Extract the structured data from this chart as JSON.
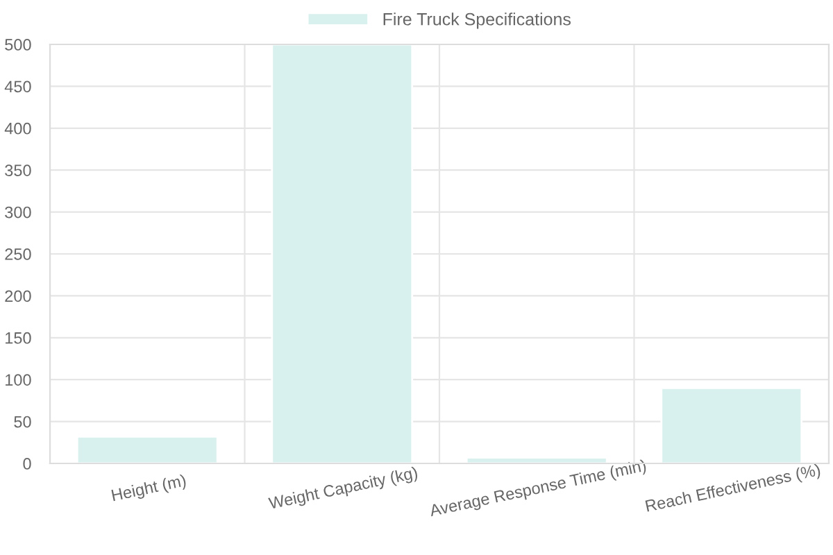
{
  "chart_data": {
    "type": "bar",
    "categories": [
      "Height (m)",
      "Weight Capacity (kg)",
      "Average Response Time (min)",
      "Reach Effectiveness (%)"
    ],
    "series": [
      {
        "name": "Fire Truck Specifications",
        "color": "#d9f1ee",
        "values": [
          32,
          500,
          7,
          90
        ]
      }
    ],
    "ylim": [
      0,
      500
    ],
    "yticks": [
      0,
      50,
      100,
      150,
      200,
      250,
      300,
      350,
      400,
      450,
      500
    ],
    "grid": true,
    "legend": "top"
  }
}
